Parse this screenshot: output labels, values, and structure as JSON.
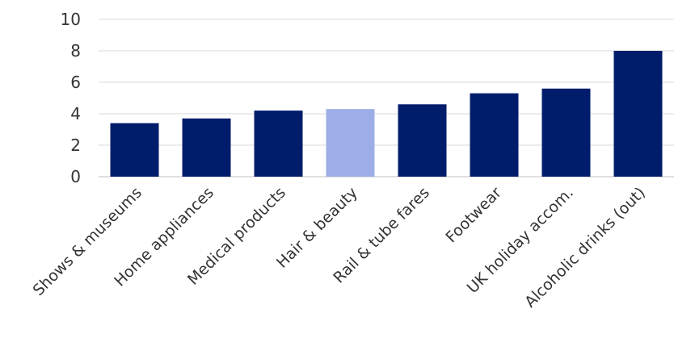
{
  "chart_data": {
    "type": "bar",
    "categories": [
      "Shows & museums",
      "Home appliances",
      "Medical products",
      "Hair & beauty",
      "Rail & tube fares",
      "Footwear",
      "UK holiday accom.",
      "Alcoholic drinks (out)"
    ],
    "values": [
      3.4,
      3.7,
      4.2,
      4.3,
      4.6,
      5.3,
      5.6,
      8.0
    ],
    "ylim": [
      0,
      10
    ],
    "yticks": [
      0,
      2,
      4,
      6,
      8,
      10
    ],
    "title": "",
    "xlabel": "",
    "ylabel": "",
    "grid": true,
    "colors": {
      "default": "#001c6b",
      "highlight": "#9daee6"
    },
    "highlight_category": "Hair & beauty"
  }
}
